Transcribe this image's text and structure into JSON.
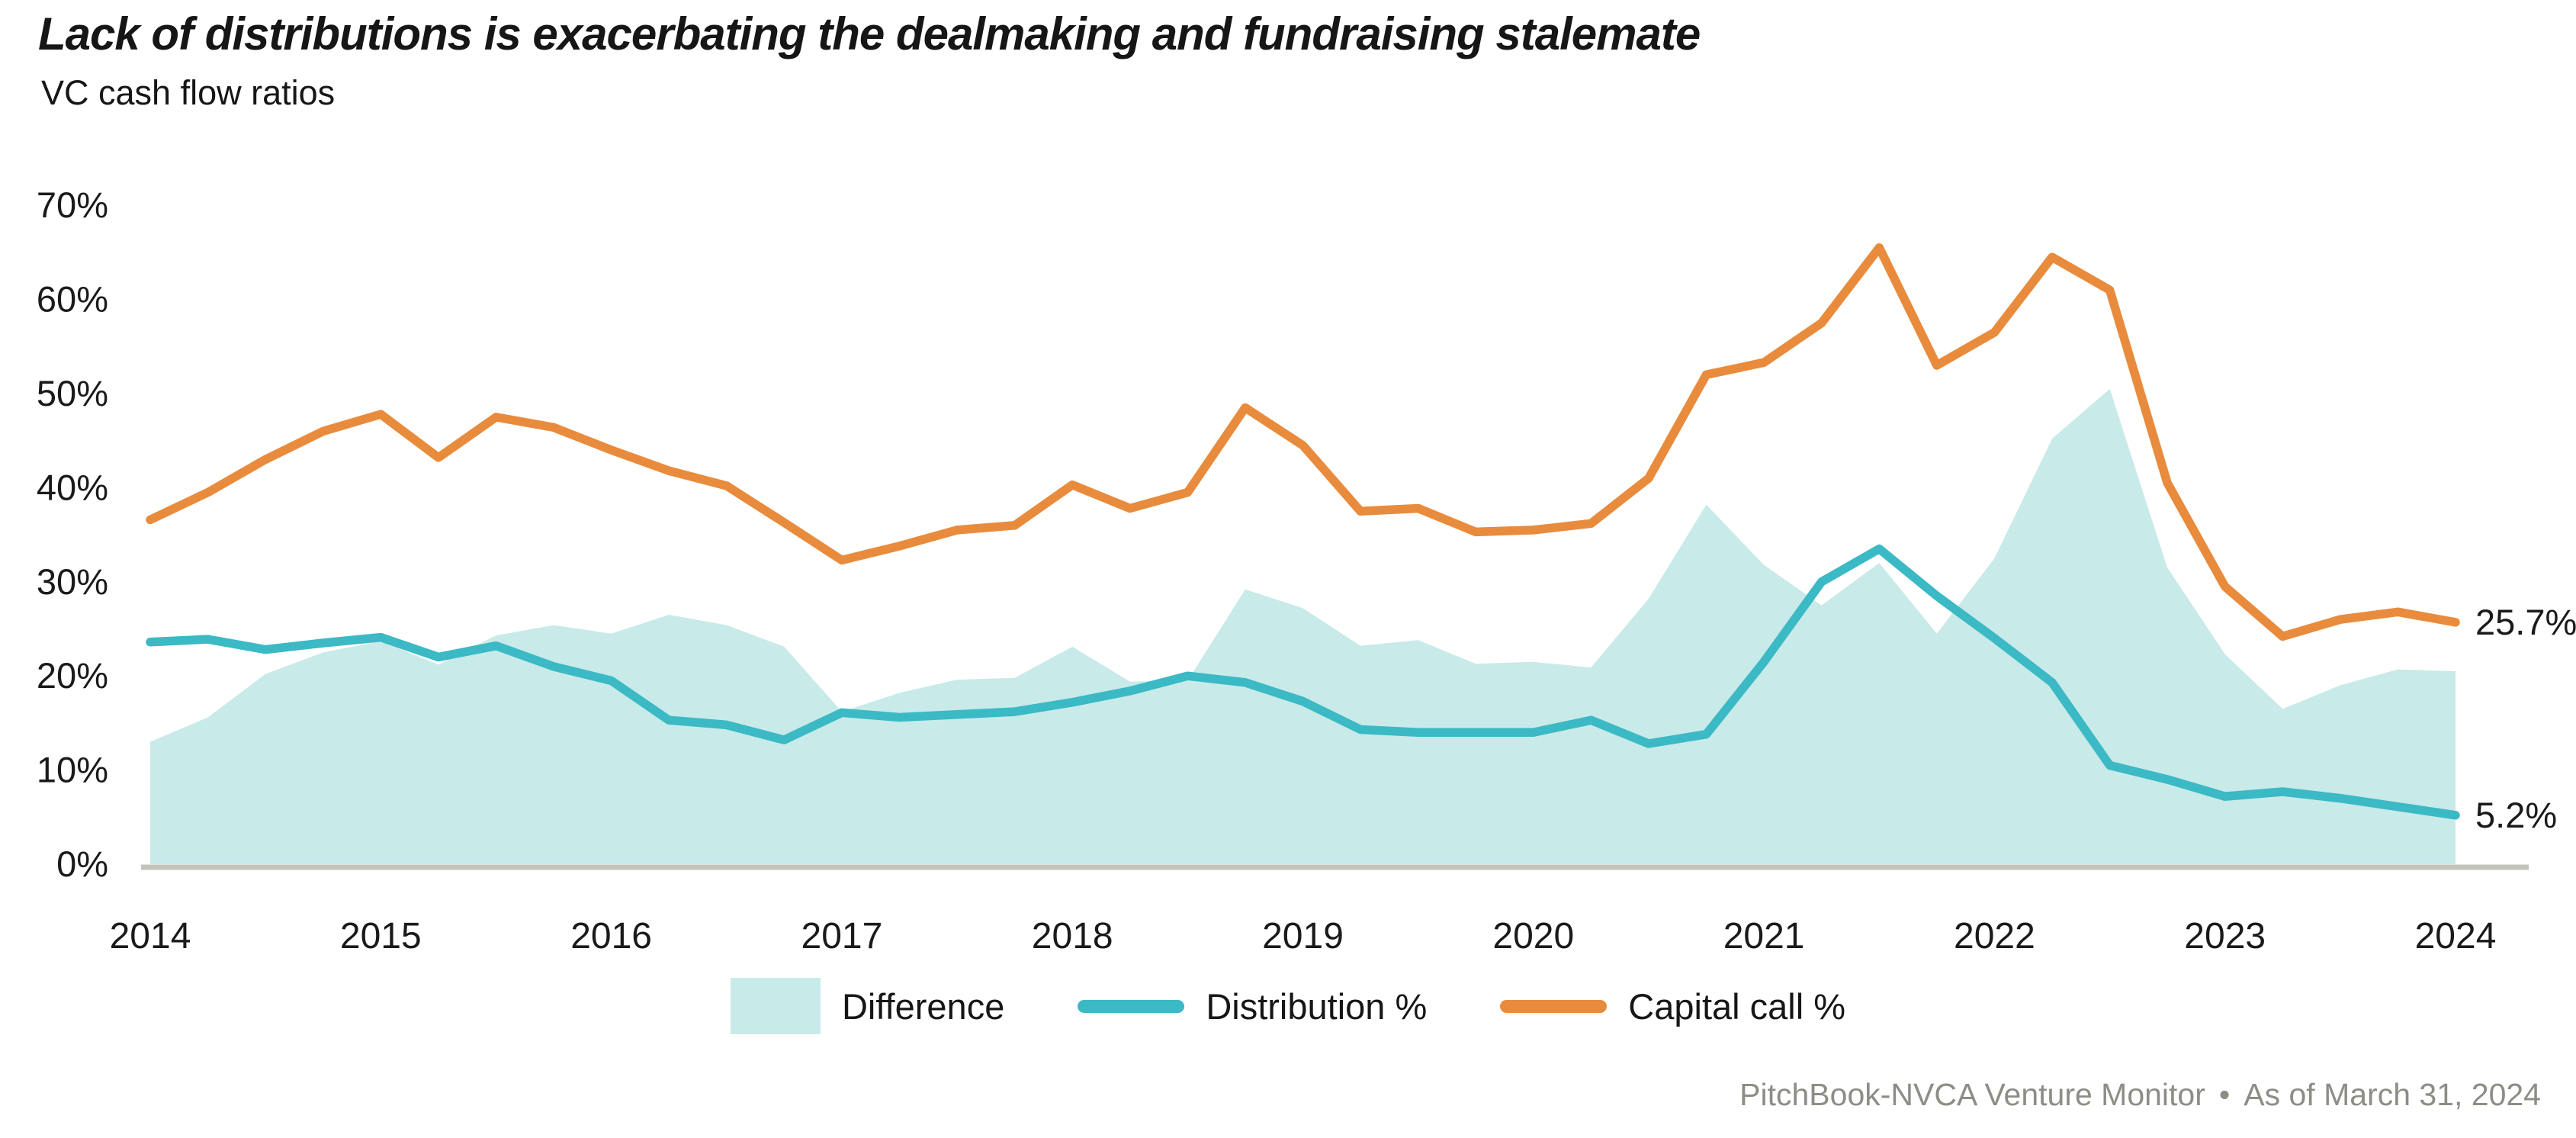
{
  "header": {
    "title": "Lack of distributions is exacerbating the dealmaking and fundraising stalemate",
    "subtitle": "VC cash flow ratios"
  },
  "chart_data": {
    "type": "area+line",
    "title": "VC cash flow ratios",
    "x_unit": "quarter",
    "x_start": "2014 Q1",
    "x_end": "2024 Q1",
    "x_labels": [
      "2014",
      "2015",
      "2016",
      "2017",
      "2018",
      "2019",
      "2020",
      "2021",
      "2022",
      "2023",
      "2024"
    ],
    "ylim": [
      0,
      70
    ],
    "y_tick_step": 10,
    "y_tick_labels": [
      "0%",
      "10%",
      "20%",
      "30%",
      "40%",
      "50%",
      "60%",
      "70%"
    ],
    "grid": "off",
    "legend_position": "bottom-center",
    "series": [
      {
        "name": "Difference",
        "type": "area",
        "color": "#c8eae9",
        "values": [
          13.0,
          15.6,
          20.2,
          22.5,
          23.7,
          21.2,
          24.3,
          25.4,
          24.5,
          26.5,
          25.4,
          23.1,
          16.2,
          18.2,
          19.6,
          19.8,
          23.1,
          19.4,
          19.5,
          29.2,
          27.2,
          23.2,
          23.8,
          21.3,
          21.5,
          20.9,
          28.2,
          38.2,
          31.8,
          27.5,
          32.0,
          24.5,
          32.5,
          45.2,
          50.5,
          31.5,
          22.3,
          16.5,
          19.0,
          20.7,
          20.5
        ]
      },
      {
        "name": "Distribution %",
        "type": "line",
        "color": "#3bb9c4",
        "end_label": "5.2%",
        "values": [
          23.6,
          23.9,
          22.8,
          23.5,
          24.1,
          22.0,
          23.2,
          21.0,
          19.5,
          15.3,
          14.8,
          13.2,
          16.1,
          15.6,
          15.9,
          16.2,
          17.2,
          18.4,
          20.0,
          19.3,
          17.3,
          14.3,
          14.0,
          14.0,
          14.0,
          15.3,
          12.8,
          13.8,
          21.5,
          30.0,
          33.5,
          28.5,
          24.0,
          19.3,
          10.5,
          9.0,
          7.2,
          7.7,
          7.0,
          6.1,
          5.2
        ]
      },
      {
        "name": "Capital call %",
        "type": "line",
        "color": "#e98b3c",
        "end_label": "25.7%",
        "values": [
          36.6,
          39.5,
          43.0,
          46.0,
          47.8,
          43.2,
          47.5,
          46.4,
          44.0,
          41.8,
          40.2,
          36.3,
          32.3,
          33.8,
          35.5,
          36.0,
          40.3,
          37.8,
          39.5,
          48.5,
          44.5,
          37.5,
          37.8,
          35.3,
          35.5,
          36.2,
          41.0,
          52.0,
          53.3,
          57.5,
          65.5,
          53.0,
          56.5,
          64.5,
          61.0,
          40.5,
          29.5,
          24.2,
          26.0,
          26.8,
          25.7
        ]
      }
    ],
    "colors": {
      "axis_line": "#c4c4bc",
      "tick_text": "#1a1a1a",
      "end_label_text": "#1a1a1a"
    }
  },
  "legend": {
    "items": [
      {
        "label": "Difference"
      },
      {
        "label": "Distribution %"
      },
      {
        "label": "Capital call %"
      }
    ]
  },
  "footer": {
    "source": "PitchBook-NVCA Venture Monitor",
    "divider": "•",
    "as_of": "As of March 31, 2024"
  }
}
